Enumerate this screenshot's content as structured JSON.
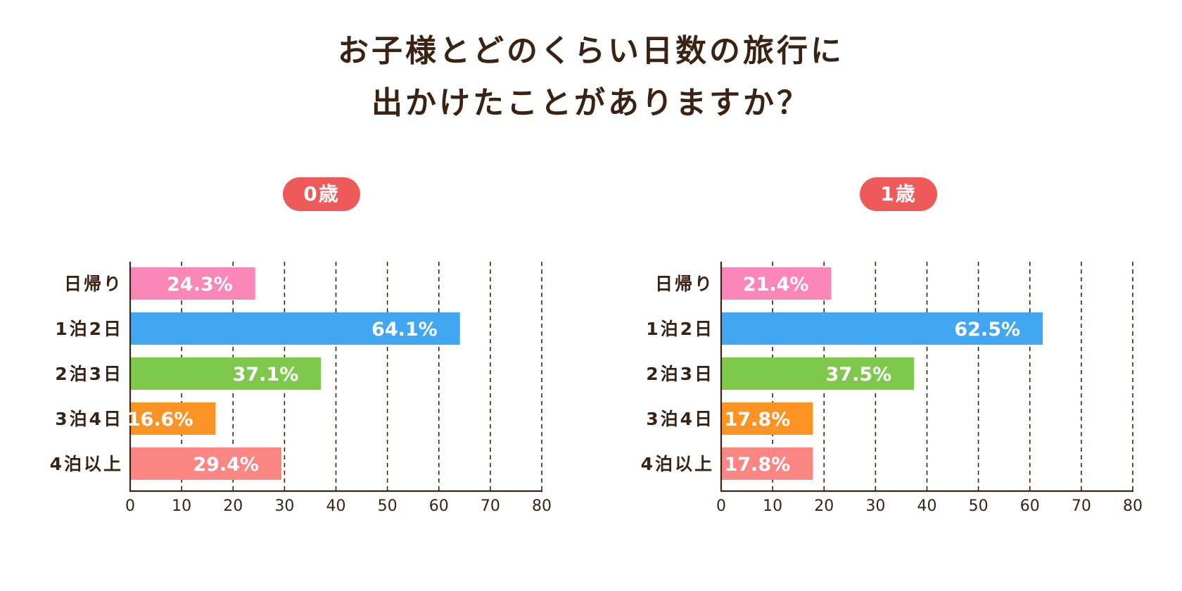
{
  "title": {
    "line1": "お子様とどのくらい日数の旅行に",
    "line2": "出かけたことがありますか？"
  },
  "colors": {
    "badge": "#ee5a5a",
    "text": "#3b2314",
    "grid": "#3b2314",
    "bars": [
      "#fb86b8",
      "#42a7f2",
      "#7ec84b",
      "#fb9425",
      "#fb8683"
    ]
  },
  "chart_data": [
    {
      "type": "bar",
      "orientation": "horizontal",
      "title": "0歳",
      "categories": [
        "日帰り",
        "1泊2日",
        "2泊3日",
        "3泊4日",
        "4泊以上"
      ],
      "values": [
        24.3,
        64.1,
        37.1,
        16.6,
        29.4
      ],
      "value_labels": [
        "24.3%",
        "64.1%",
        "37.1%",
        "16.6%",
        "29.4%"
      ],
      "xlim": [
        0,
        80
      ],
      "xticks": [
        0,
        10,
        20,
        30,
        40,
        50,
        60,
        70,
        80
      ],
      "grid": true,
      "xlabel": "",
      "ylabel": ""
    },
    {
      "type": "bar",
      "orientation": "horizontal",
      "title": "1歳",
      "categories": [
        "日帰り",
        "1泊2日",
        "2泊3日",
        "3泊4日",
        "4泊以上"
      ],
      "values": [
        21.4,
        62.5,
        37.5,
        17.8,
        17.8
      ],
      "value_labels": [
        "21.4%",
        "62.5%",
        "37.5%",
        "17.8%",
        "17.8%"
      ],
      "xlim": [
        0,
        80
      ],
      "xticks": [
        0,
        10,
        20,
        30,
        40,
        50,
        60,
        70,
        80
      ],
      "grid": true,
      "xlabel": "",
      "ylabel": ""
    }
  ]
}
